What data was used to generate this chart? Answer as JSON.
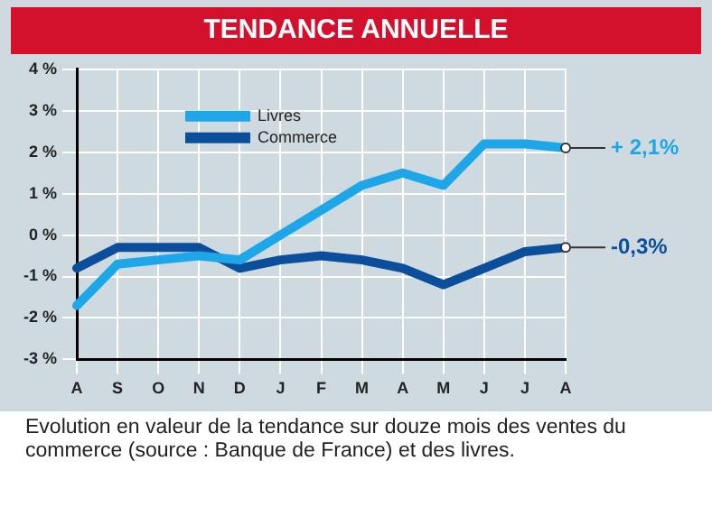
{
  "chart_data": {
    "type": "line",
    "title": "TENDANCE ANNUELLE",
    "categories": [
      "A",
      "S",
      "O",
      "N",
      "D",
      "J",
      "F",
      "M",
      "A",
      "M",
      "J",
      "J",
      "A"
    ],
    "series": [
      {
        "name": "Livres",
        "color": "#1ea7e8",
        "values": [
          -1.7,
          -0.7,
          -0.6,
          -0.5,
          -0.6,
          0.0,
          0.6,
          1.2,
          1.5,
          1.2,
          2.2,
          2.2,
          2.1
        ],
        "value_labels": [
          null,
          null,
          null,
          null,
          null,
          null,
          null,
          null,
          null,
          null,
          null,
          null,
          "+ 2,1%"
        ]
      },
      {
        "name": "Commerce",
        "color": "#0b4f9c",
        "values": [
          -0.8,
          -0.3,
          -0.3,
          -0.3,
          -0.8,
          -0.6,
          -0.5,
          -0.6,
          -0.8,
          -1.2,
          -0.8,
          -0.4,
          -0.3
        ],
        "value_labels": [
          null,
          null,
          null,
          null,
          null,
          null,
          null,
          null,
          null,
          null,
          null,
          null,
          "-0,3%"
        ]
      }
    ],
    "ylim": [
      -3,
      4
    ],
    "yticks": [
      {
        "value": -3,
        "label": "-3 %"
      },
      {
        "value": -2,
        "label": "-2 %"
      },
      {
        "value": -1,
        "label": "-1 %"
      },
      {
        "value": 0,
        "label": "0 %"
      },
      {
        "value": 1,
        "label": "1 %"
      },
      {
        "value": 2,
        "label": "2 %"
      },
      {
        "value": 3,
        "label": "3 %"
      },
      {
        "value": 4,
        "label": "4 %"
      }
    ],
    "grid": true,
    "legend": "top left",
    "marker": "none",
    "line_style": "solid",
    "annotations": [
      "Evolution en valeur de la tendance sur douze mois des ventes du commerce (source : Banque de France) et des livres."
    ]
  }
}
